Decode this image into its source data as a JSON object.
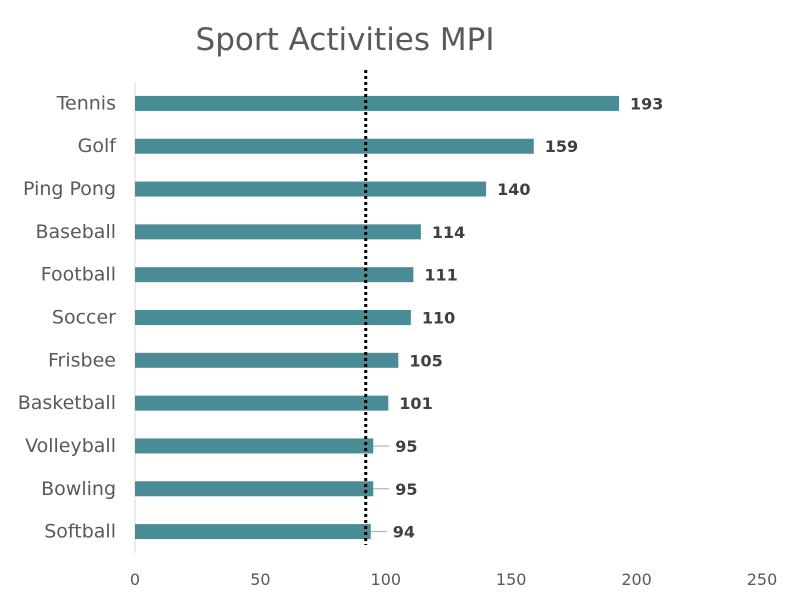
{
  "chart_data": {
    "type": "bar",
    "orientation": "horizontal",
    "title": "Sport Activities MPI",
    "categories": [
      "Tennis",
      "Golf",
      "Ping Pong",
      "Baseball",
      "Football",
      "Soccer",
      "Frisbee",
      "Basketball",
      "Volleyball",
      "Bowling",
      "Softball"
    ],
    "values": [
      193,
      159,
      140,
      114,
      111,
      110,
      105,
      101,
      95,
      95,
      94
    ],
    "data_labels": [
      "193",
      "159",
      "140",
      "114",
      "111",
      "110",
      "105",
      "101",
      "95",
      "95",
      "94"
    ],
    "xlim": [
      0,
      250
    ],
    "x_ticks": [
      0,
      50,
      100,
      150,
      200,
      250
    ],
    "x_tick_labels": [
      "0",
      "50",
      "100",
      "150",
      "200",
      "250"
    ],
    "reference_line": {
      "value": 92,
      "style": "dotted"
    },
    "grid": false,
    "legend": "none",
    "bar_color": "#4A8C96",
    "reference_color": "#000000"
  }
}
